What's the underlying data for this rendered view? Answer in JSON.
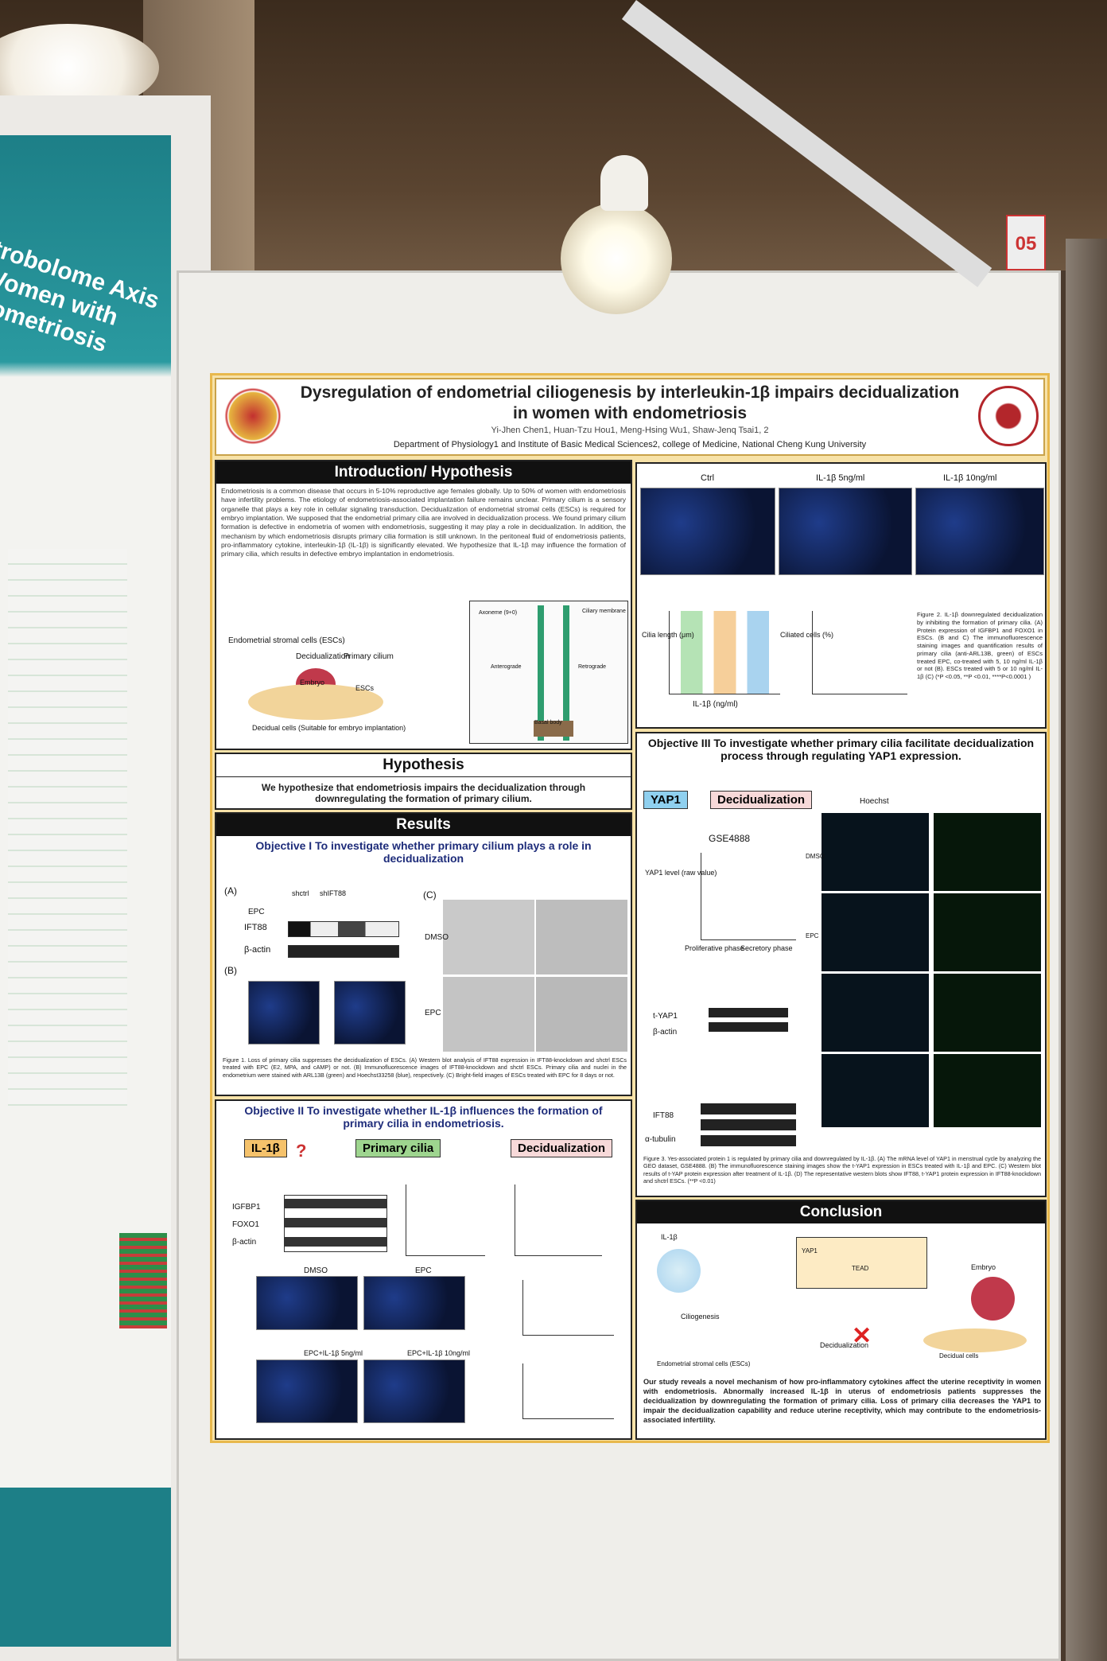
{
  "booth_number": "05",
  "left_poster": {
    "title": "Estrobolome Axis in Women with Endometriosis"
  },
  "poster": {
    "title": "Dysregulation of endometrial ciliogenesis by interleukin-1β impairs decidualization in women with endometriosis",
    "authors": "Yi-Jhen Chen1, Huan-Tzu Hou1, Meng-Hsing Wu1, Shaw-Jenq Tsai1, 2",
    "affiliation": "Department of Physiology1 and Institute of Basic Medical Sciences2, college of Medicine, National Cheng Kung University",
    "introduction": {
      "heading": "Introduction/ Hypothesis",
      "text": "Endometriosis is a common disease that occurs in 5-10% reproductive age females globally. Up to 50% of women with endometriosis have infertility problems. The etiology of endometriosis-associated implantation failure remains unclear. Primary cilium is a sensory organelle that plays a key role in cellular signaling transduction. Decidualization of endometrial stromal cells (ESCs) is required for embryo implantation. We supposed that the endometrial primary cilia are involved in decidualization process. We found primary cilium formation is defective in endometria of women with endometriosis, suggesting it may play a role in decidualization. In addition, the mechanism by which endometriosis disrupts primary cilia formation is still unknown. In the peritoneal fluid of endometriosis patients, pro-inflammatory cytokine, interleukin-1β (IL-1β) is significantly elevated. We hypothesize that IL-1β may influence the formation of primary cilia, which results in defective embryo implantation in endometriosis.",
      "labels": [
        "Endometrial stromal cells (ESCs)",
        "Decidualization",
        "Embryo",
        "Decidual cells (Suitable for embryo implantation)",
        "Primary cilium",
        "ESCs",
        "Axoneme (9+0)",
        "Ciliary membrane",
        "Anterograde",
        "Retrograde",
        "Basal body"
      ]
    },
    "hypothesis": {
      "heading": "Hypothesis",
      "text": "We hypothesize that endometriosis impairs the decidualization through downregulating the formation of primary cilium."
    },
    "results": {
      "heading": "Results",
      "objective_1": "Objective I To investigate whether primary cilium plays a role in decidualization",
      "fig1_labels": [
        "(A)",
        "shctrl",
        "shIFT88",
        "EPC",
        "IFT88",
        "β-actin",
        "(B)",
        "(C)",
        "DMSO",
        "EPC"
      ],
      "fig1_caption": "Figure 1. Loss of primary cilia suppresses the decidualization of ESCs. (A) Western blot analysis of IFT88 expression in IFT88-knockdown and shctrl ESCs treated with EPC (E2, MPA, and cAMP) or not. (B) Immunofluorescence images of IFT88-knockdown and shctrl ESCs. Primary cilia and nuclei in the endometrium were stained with ARL13B (green) and Hoechst33258 (blue), respectively. (C) Bright-field images of ESCs treated with EPC for 8 days or not.",
      "objective_2": "Objective II To investigate whether IL-1β influences the formation of primary cilia in endometriosis.",
      "fig2_flow": [
        "IL-1β",
        "Primary cilia",
        "Decidualization"
      ],
      "fig2_labels": [
        "IGFBP1",
        "FOXO1",
        "β-actin",
        "DMSO",
        "EPC",
        "EPC+IL-1β 5ng/ml",
        "EPC+IL-1β 10ng/ml"
      ]
    },
    "figure2": {
      "labels": [
        "Ctrl",
        "IL-1β 5ng/ml",
        "IL-1β 10ng/ml",
        "Cilia length (μm)",
        "Ciliated cells (%)",
        "IL-1β (ng/ml)"
      ],
      "caption": "Figure 2. IL-1β downregulated decidualization by inhibiting the formation of primary cilia. (A) Protein expression of IGFBP1 and FOXO1 in ESCs. (B and C) The immunofluorescence staining images and quantification results of primary cilia (anti-ARL13B, green) of ESCs treated EPC, co-treated with 5, 10 ng/ml IL-1β or not (B). ESCs treated with 5 or 10 ng/ml IL-1β (C) (*P <0.05, **P <0.01, ****P<0.0001 )"
    },
    "objective_3": {
      "heading": "Objective III To investigate whether primary cilia facilitate decidualization process through regulating YAP1 expression.",
      "flow": [
        "YAP1",
        "Decidualization"
      ],
      "labels": [
        "GSE4888",
        "YAP1 level (raw value)",
        "Proliferative phase",
        "Secretory phase",
        "t-YAP1",
        "β-actin",
        "IFT88",
        "α-tubulin",
        "Hoechst",
        "DMSO",
        "EPC"
      ],
      "caption": "Figure 3. Yes-associated protein 1 is regulated by primary cilia and downregulated by IL-1β. (A) The mRNA level of YAP1 in menstrual cycle by analyzing the GEO dataset, GSE4888. (B) The immunofluorescence staining images show the t-YAP1 expression in ESCs treated with IL-1β and EPC. (C) Western blot results of t-YAP protein expression after treatment of IL-1β. (D) The representative western blots show IFT88, t-YAP1 protein expression in IFT88-knockdown and shctrl ESCs. (**P <0.01)"
    },
    "conclusion": {
      "heading": "Conclusion",
      "labels": [
        "IL-1β",
        "Ciliogenesis",
        "Endometrial stromal cells (ESCs)",
        "Decidualization",
        "Decidual cells",
        "Embryo",
        "YAP1",
        "TEAD"
      ],
      "text": "Our study reveals a novel mechanism of how pro-inflammatory cytokines affect the uterine receptivity in women with endometriosis. Abnormally increased IL-1β in uterus of endometriosis patients suppresses the decidualization by downregulating the formation of primary cilia. Loss of primary cilia decreases the YAP1 to impair the decidualization capability and reduce uterine receptivity, which may contribute to the endometriosis-associated infertility."
    }
  }
}
